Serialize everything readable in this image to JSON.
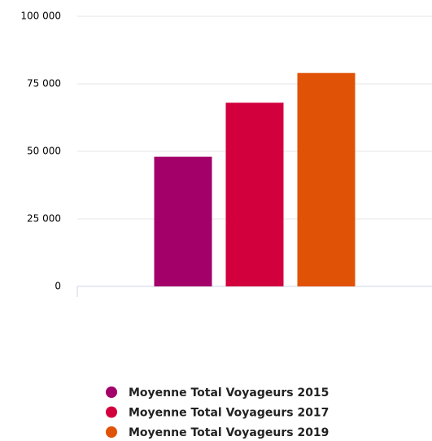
{
  "chart_data": {
    "type": "bar",
    "categories": [
      null
    ],
    "series": [
      {
        "name": "Moyenne Total Voyageurs 2015",
        "color": "#a3006a",
        "values": [
          48000
        ]
      },
      {
        "name": "Moyenne Total Voyageurs 2017",
        "color": "#d2003c",
        "values": [
          68000
        ]
      },
      {
        "name": "Moyenne Total Voyageurs 2019",
        "color": "#e05206",
        "values": [
          79000
        ]
      }
    ],
    "ylim": [
      0,
      100000
    ],
    "yticks": [
      0,
      {
        "value": 25000,
        "label": "25 000"
      },
      {
        "value": 50000,
        "label": "50 000"
      },
      {
        "value": 75000,
        "label": "75 000"
      },
      {
        "value": 100000,
        "label": "100 000"
      }
    ],
    "grid": true
  }
}
